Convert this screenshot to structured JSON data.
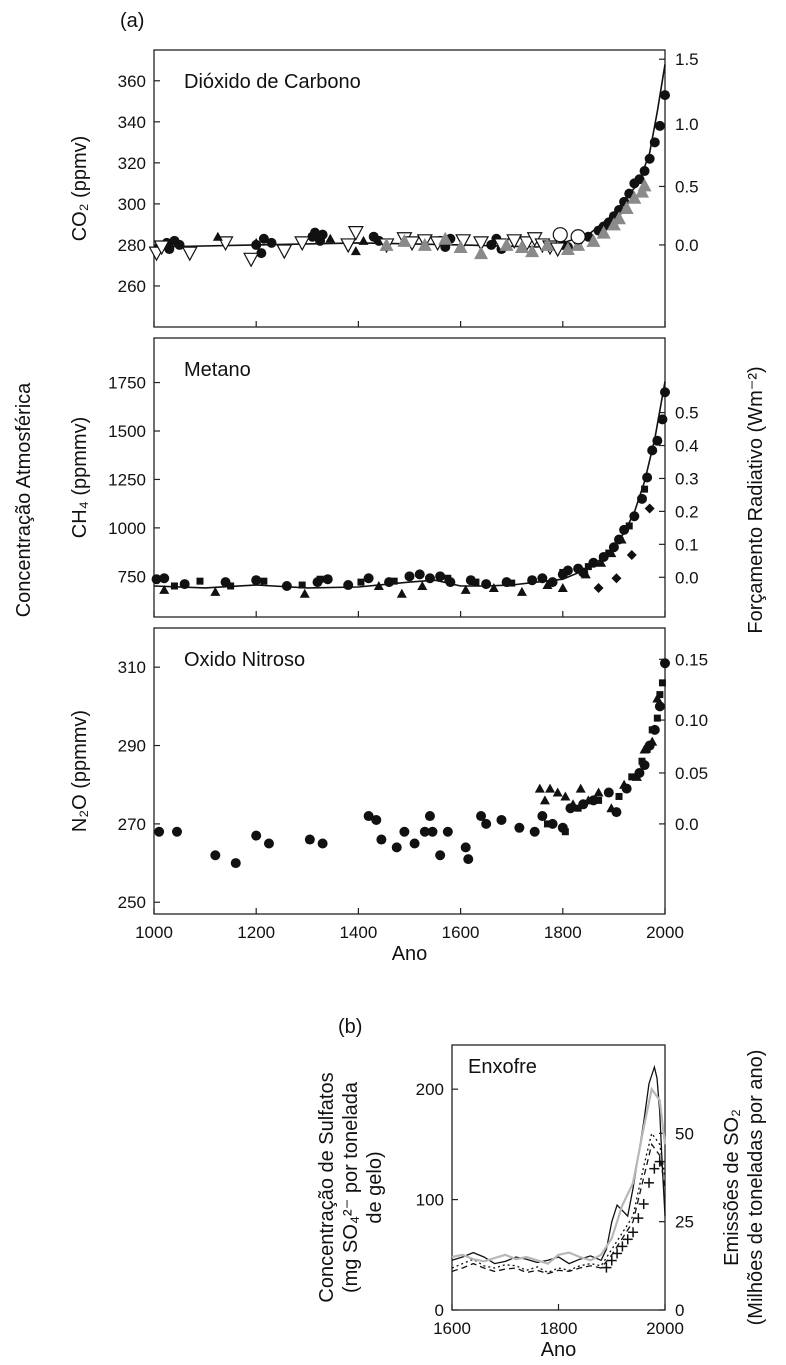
{
  "figure": {
    "label_a": "(a)",
    "label_b": "(b)",
    "shared_ylabel_left": "Concentração Atmosférica",
    "shared_ylabel_right": "Forçamento Radiativo (Wm⁻²)",
    "colors": {
      "ink": "#111111",
      "gray_marker": "#8a8a8a",
      "light_line": "#b8b8b8",
      "teal_tick": "#2f8f8f"
    }
  },
  "chart_data": [
    {
      "id": "co2",
      "type": "scatter",
      "title": "Dióxido de Carbono",
      "xlabel": "",
      "ylabel": "CO₂ (ppmv)",
      "y2label": "",
      "xlim": [
        1000,
        2000
      ],
      "ylim": [
        240,
        375
      ],
      "yticks": [
        260,
        280,
        300,
        320,
        340,
        360
      ],
      "y2ticks": [
        {
          "value": 0.0,
          "at_y": 280,
          "label": "0.0"
        },
        {
          "value": 0.5,
          "at_y": 308.5,
          "label": "0.5"
        },
        {
          "value": 1.0,
          "at_y": 339,
          "label": "1.0"
        },
        {
          "value": 1.5,
          "at_y": 370.5,
          "label": "1.5"
        }
      ],
      "curve": [
        [
          1000,
          279
        ],
        [
          1200,
          280
        ],
        [
          1400,
          281
        ],
        [
          1600,
          280
        ],
        [
          1750,
          279
        ],
        [
          1800,
          281
        ],
        [
          1850,
          285
        ],
        [
          1900,
          295
        ],
        [
          1925,
          303
        ],
        [
          1950,
          311
        ],
        [
          1970,
          325
        ],
        [
          1985,
          345
        ],
        [
          2000,
          368
        ]
      ],
      "series": [
        {
          "marker": "circle",
          "x": [
            1010,
            1025,
            1030,
            1040,
            1050,
            1200,
            1210,
            1215,
            1230,
            1310,
            1315,
            1325,
            1330,
            1430,
            1440,
            1560,
            1570,
            1580,
            1660,
            1670,
            1680,
            1800,
            1810,
            1830,
            1850,
            1870,
            1880,
            1890,
            1900,
            1910,
            1920,
            1930,
            1940,
            1950,
            1960,
            1970,
            1980,
            1990,
            2000
          ],
          "y": [
            279,
            281,
            278,
            282,
            280,
            280,
            276,
            283,
            281,
            284,
            286,
            282,
            285,
            284,
            282,
            282,
            279,
            283,
            280,
            283,
            278,
            280,
            279,
            282,
            284,
            287,
            289,
            291,
            294,
            297,
            301,
            305,
            310,
            312,
            316,
            322,
            330,
            338,
            353
          ]
        },
        {
          "marker": "triangle-down-open",
          "x": [
            1005,
            1015,
            1070,
            1140,
            1190,
            1255,
            1290,
            1380,
            1395,
            1455,
            1490,
            1505,
            1530,
            1555,
            1605,
            1640,
            1680,
            1705,
            1730,
            1745,
            1760,
            1775,
            1790
          ],
          "y": [
            276,
            279,
            276,
            281,
            273,
            277,
            281,
            280,
            286,
            280,
            283,
            281,
            282,
            281,
            282,
            281,
            280,
            282,
            281,
            283,
            280,
            279,
            278
          ]
        },
        {
          "marker": "triangle",
          "x": [
            1125,
            1200,
            1345,
            1395,
            1410
          ],
          "y": [
            284,
            281,
            283,
            277,
            282
          ]
        },
        {
          "marker": "triangle-gray",
          "x": [
            1455,
            1490,
            1530,
            1570,
            1600,
            1640,
            1690,
            1720,
            1740,
            1770,
            1810,
            1830,
            1860,
            1880,
            1900,
            1910,
            1925,
            1940,
            1955,
            1960
          ],
          "y": [
            280,
            282,
            280,
            283,
            279,
            276,
            280,
            279,
            277,
            280,
            278,
            280,
            282,
            286,
            290,
            293,
            298,
            303,
            306,
            309
          ]
        },
        {
          "marker": "circle-open",
          "x": [
            1795,
            1830
          ],
          "y": [
            285,
            284
          ]
        }
      ]
    },
    {
      "id": "ch4",
      "type": "scatter",
      "title": "Metano",
      "xlabel": "",
      "ylabel": "CH₄ (ppmmv)",
      "y2label": "",
      "xlim": [
        1000,
        2000
      ],
      "ylim": [
        540,
        1980
      ],
      "yticks": [
        750,
        1000,
        1250,
        1500,
        1750
      ],
      "y2ticks": [
        {
          "value": 0.0,
          "at_y": 745,
          "label": "0.0"
        },
        {
          "value": 0.1,
          "at_y": 915,
          "label": "0.1"
        },
        {
          "value": 0.2,
          "at_y": 1085,
          "label": "0.2"
        },
        {
          "value": 0.3,
          "at_y": 1255,
          "label": "0.3"
        },
        {
          "value": 0.4,
          "at_y": 1425,
          "label": "0.4"
        },
        {
          "value": 0.5,
          "at_y": 1595,
          "label": "0.5"
        }
      ],
      "curve": [
        [
          1000,
          700
        ],
        [
          1100,
          690
        ],
        [
          1200,
          705
        ],
        [
          1300,
          690
        ],
        [
          1400,
          695
        ],
        [
          1500,
          720
        ],
        [
          1550,
          730
        ],
        [
          1600,
          700
        ],
        [
          1650,
          700
        ],
        [
          1700,
          705
        ],
        [
          1750,
          720
        ],
        [
          1800,
          735
        ],
        [
          1850,
          790
        ],
        [
          1880,
          850
        ],
        [
          1900,
          900
        ],
        [
          1920,
          975
        ],
        [
          1940,
          1080
        ],
        [
          1960,
          1240
        ],
        [
          1980,
          1460
        ],
        [
          2000,
          1755
        ]
      ],
      "series": [
        {
          "marker": "circle",
          "x": [
            1005,
            1020,
            1060,
            1140,
            1200,
            1260,
            1320,
            1340,
            1380,
            1420,
            1460,
            1500,
            1520,
            1540,
            1560,
            1580,
            1620,
            1650,
            1690,
            1740,
            1760,
            1780,
            1800,
            1810,
            1830,
            1840,
            1860,
            1880,
            1900,
            1910,
            1920,
            1940,
            1955,
            1965,
            1975,
            1985,
            1995,
            2000
          ],
          "y": [
            735,
            740,
            710,
            720,
            730,
            700,
            720,
            735,
            705,
            740,
            720,
            750,
            760,
            740,
            750,
            720,
            730,
            710,
            720,
            730,
            740,
            720,
            760,
            780,
            790,
            770,
            820,
            850,
            900,
            940,
            990,
            1060,
            1150,
            1260,
            1400,
            1450,
            1560,
            1700
          ]
        },
        {
          "marker": "square",
          "x": [
            1040,
            1090,
            1150,
            1215,
            1290,
            1325,
            1405,
            1470,
            1575,
            1630,
            1700,
            1800,
            1850,
            1890,
            1930,
            1960
          ],
          "y": [
            700,
            725,
            700,
            725,
            705,
            735,
            720,
            725,
            740,
            720,
            715,
            770,
            800,
            870,
            1010,
            1200
          ]
        },
        {
          "marker": "triangle",
          "x": [
            1020,
            1120,
            1295,
            1440,
            1485,
            1525,
            1610,
            1665,
            1720,
            1770,
            1800,
            1845,
            1875,
            1895,
            1915
          ],
          "y": [
            680,
            670,
            660,
            700,
            660,
            700,
            680,
            690,
            670,
            705,
            690,
            760,
            820,
            870,
            940
          ]
        },
        {
          "marker": "diamond",
          "x": [
            1870,
            1905,
            1935,
            1970
          ],
          "y": [
            690,
            740,
            860,
            1100
          ]
        }
      ]
    },
    {
      "id": "n2o",
      "type": "scatter",
      "title": "Oxido Nitroso",
      "xlabel": "Ano",
      "ylabel": "N₂O (ppmmv)",
      "y2label": "",
      "xlim": [
        1000,
        2000
      ],
      "ylim": [
        247,
        320
      ],
      "yticks": [
        250,
        270,
        290,
        310
      ],
      "xticks": [
        1000,
        1200,
        1400,
        1600,
        1800,
        2000
      ],
      "y2ticks": [
        {
          "value": 0.0,
          "at_y": 270,
          "label": "0.0"
        },
        {
          "value": 0.05,
          "at_y": 283,
          "label": "0.05"
        },
        {
          "value": 0.1,
          "at_y": 296.5,
          "label": "0.10"
        },
        {
          "value": 0.15,
          "at_y": 312,
          "label": "0.15"
        }
      ],
      "series": [
        {
          "marker": "circle",
          "x": [
            1010,
            1045,
            1120,
            1160,
            1200,
            1225,
            1305,
            1330,
            1420,
            1435,
            1445,
            1475,
            1490,
            1510,
            1530,
            1540,
            1545,
            1560,
            1575,
            1610,
            1615,
            1640,
            1650,
            1680,
            1715,
            1745,
            1760,
            1780,
            1800,
            1815,
            1840,
            1860,
            1890,
            1905,
            1925,
            1950,
            1960,
            1970,
            1980,
            1990,
            2000
          ],
          "y": [
            268,
            268,
            262,
            260,
            267,
            265,
            266,
            265,
            272,
            271,
            266,
            264,
            268,
            265,
            268,
            272,
            268,
            262,
            268,
            264,
            261,
            272,
            270,
            271,
            269,
            268,
            272,
            270,
            269,
            274,
            275,
            276,
            278,
            273,
            279,
            283,
            285,
            290,
            294,
            300,
            311
          ]
        },
        {
          "marker": "square",
          "x": [
            1770,
            1805,
            1830,
            1870,
            1910,
            1935,
            1955,
            1965,
            1975,
            1985,
            1990,
            1995
          ],
          "y": [
            270,
            268,
            274,
            276,
            277,
            282,
            286,
            289,
            294,
            297,
            303,
            306
          ]
        },
        {
          "marker": "triangle",
          "x": [
            1755,
            1765,
            1775,
            1790,
            1805,
            1820,
            1835,
            1850,
            1870,
            1895,
            1920,
            1945,
            1960,
            1975,
            1985
          ],
          "y": [
            279,
            276,
            279,
            278,
            277,
            275,
            279,
            276,
            278,
            274,
            280,
            282,
            289,
            291,
            302
          ]
        }
      ]
    },
    {
      "id": "so4",
      "type": "line",
      "title": "Enxofre",
      "xlabel": "Ano",
      "ylabel": "Concentração de Sulfatos (mg SO₄²⁻ por tonelada de gelo)",
      "ylabel_lines": [
        "Concentração de Sulfatos",
        "(mg SO₄²⁻ por tonelada",
        "de gelo)"
      ],
      "y2label_lines": [
        "Emissões de SO₂",
        "(Milhões de toneladas por ano)"
      ],
      "xlim": [
        1600,
        2000
      ],
      "ylim": [
        0,
        240
      ],
      "xticks": [
        1600,
        1800,
        2000
      ],
      "yticks": [
        0,
        100,
        200
      ],
      "y2ticks": [
        {
          "value": 0,
          "at_y": 0,
          "label": "0"
        },
        {
          "value": 25,
          "at_y": 80,
          "label": "25"
        },
        {
          "value": 50,
          "at_y": 160,
          "label": "50"
        }
      ],
      "series": [
        {
          "style": "solid",
          "x": [
            1600,
            1620,
            1640,
            1660,
            1680,
            1700,
            1720,
            1740,
            1760,
            1780,
            1800,
            1820,
            1840,
            1860,
            1880,
            1890,
            1900,
            1910,
            1920,
            1930,
            1940,
            1950,
            1960,
            1970,
            1980,
            1985,
            1990,
            1995,
            2000
          ],
          "y": [
            45,
            48,
            52,
            48,
            42,
            44,
            48,
            46,
            43,
            45,
            48,
            42,
            46,
            49,
            45,
            55,
            80,
            95,
            90,
            85,
            110,
            140,
            170,
            205,
            220,
            210,
            180,
            130,
            85
          ]
        },
        {
          "style": "dotted",
          "x": [
            1600,
            1620,
            1640,
            1660,
            1680,
            1700,
            1720,
            1740,
            1760,
            1780,
            1800,
            1820,
            1840,
            1860,
            1880,
            1900,
            1920,
            1940,
            1960,
            1975,
            1990,
            2000
          ],
          "y": [
            38,
            42,
            46,
            40,
            38,
            41,
            40,
            36,
            39,
            34,
            38,
            36,
            40,
            42,
            40,
            55,
            70,
            85,
            130,
            160,
            150,
            120
          ]
        },
        {
          "style": "gray",
          "x": [
            1600,
            1620,
            1640,
            1660,
            1680,
            1700,
            1720,
            1740,
            1760,
            1780,
            1800,
            1820,
            1840,
            1860,
            1880,
            1900,
            1920,
            1940,
            1960,
            1975,
            1990,
            2000
          ],
          "y": [
            48,
            50,
            46,
            44,
            47,
            50,
            46,
            48,
            45,
            42,
            50,
            52,
            48,
            45,
            50,
            65,
            95,
            115,
            165,
            200,
            190,
            150
          ]
        },
        {
          "style": "dashed",
          "x": [
            1600,
            1620,
            1640,
            1660,
            1680,
            1700,
            1720,
            1740,
            1760,
            1780,
            1800,
            1820,
            1840,
            1860,
            1880,
            1900,
            1920,
            1940,
            1960,
            1975,
            1990,
            2000
          ],
          "y": [
            35,
            38,
            42,
            38,
            35,
            37,
            38,
            34,
            36,
            33,
            36,
            35,
            38,
            40,
            38,
            50,
            65,
            80,
            120,
            150,
            140,
            110
          ]
        },
        {
          "style": "plus",
          "axis": "right",
          "x": [
            1890,
            1900,
            1910,
            1920,
            1930,
            1940,
            1950,
            1960,
            1970,
            1980,
            1990
          ],
          "y": [
            12,
            14,
            16,
            18,
            20,
            22,
            26,
            30,
            36,
            40,
            42
          ]
        }
      ]
    }
  ]
}
